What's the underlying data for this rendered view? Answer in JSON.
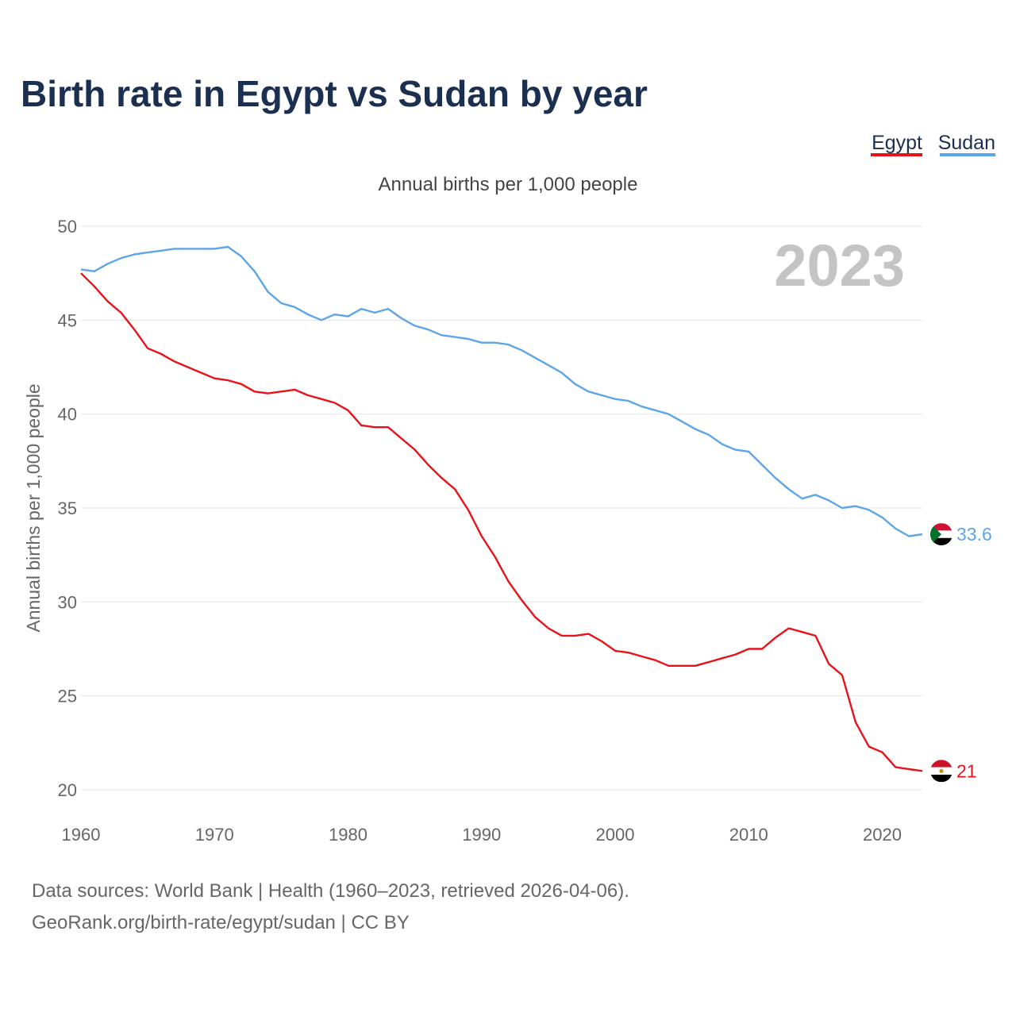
{
  "title": "Birth rate in Egypt vs Sudan by year",
  "subtitle": "Annual births per 1,000 people",
  "year_display": "2023",
  "source_line1": "Data sources: World Bank | Health (1960–2023, retrieved 2026-04-06).",
  "source_line2": "GeoRank.org/birth-rate/egypt/sudan | CC BY",
  "colors": {
    "egypt": "#e8131a",
    "sudan": "#5ea5e6",
    "title": "#1b3050"
  },
  "legend": [
    {
      "name": "Egypt",
      "color": "#e8131a"
    },
    {
      "name": "Sudan",
      "color": "#5ea5e6"
    }
  ],
  "chart_data": {
    "type": "line",
    "title": "Birth rate in Egypt vs Sudan by year",
    "ylabel": "Annual births per 1,000 people",
    "xlabel": "",
    "xlim": [
      1960,
      2023
    ],
    "ylim": [
      20,
      50
    ],
    "x_ticks": [
      "1960",
      "1970",
      "1980",
      "1990",
      "2000",
      "2010",
      "2020"
    ],
    "y_ticks": [
      "20",
      "25",
      "30",
      "35",
      "40",
      "45",
      "50"
    ],
    "x": [
      1960,
      1961,
      1962,
      1963,
      1964,
      1965,
      1966,
      1967,
      1968,
      1969,
      1970,
      1971,
      1972,
      1973,
      1974,
      1975,
      1976,
      1977,
      1978,
      1979,
      1980,
      1981,
      1982,
      1983,
      1984,
      1985,
      1986,
      1987,
      1988,
      1989,
      1990,
      1991,
      1992,
      1993,
      1994,
      1995,
      1996,
      1997,
      1998,
      1999,
      2000,
      2001,
      2002,
      2003,
      2004,
      2005,
      2006,
      2007,
      2008,
      2009,
      2010,
      2011,
      2012,
      2013,
      2014,
      2015,
      2016,
      2017,
      2018,
      2019,
      2020,
      2021,
      2022,
      2023
    ],
    "series": [
      {
        "name": "Egypt",
        "color": "#e8131a",
        "end_label": "21",
        "values": [
          47.5,
          46.8,
          46.0,
          45.4,
          44.5,
          43.5,
          43.2,
          42.8,
          42.5,
          42.2,
          41.9,
          41.8,
          41.6,
          41.2,
          41.1,
          41.2,
          41.3,
          41.0,
          40.8,
          40.6,
          40.2,
          39.4,
          39.3,
          39.3,
          38.7,
          38.1,
          37.3,
          36.6,
          36.0,
          34.9,
          33.5,
          32.4,
          31.1,
          30.1,
          29.2,
          28.6,
          28.2,
          28.2,
          28.3,
          27.9,
          27.4,
          27.3,
          27.1,
          26.9,
          26.6,
          26.6,
          26.6,
          26.8,
          27.0,
          27.2,
          27.5,
          27.5,
          28.1,
          28.6,
          28.4,
          28.2,
          26.7,
          26.1,
          23.6,
          22.3,
          22.0,
          21.2,
          21.1,
          21.0
        ]
      },
      {
        "name": "Sudan",
        "color": "#5ea5e6",
        "end_label": "33.6",
        "values": [
          47.7,
          47.6,
          48.0,
          48.3,
          48.5,
          48.6,
          48.7,
          48.8,
          48.8,
          48.8,
          48.8,
          48.9,
          48.4,
          47.6,
          46.5,
          45.9,
          45.7,
          45.3,
          45.0,
          45.3,
          45.2,
          45.6,
          45.4,
          45.6,
          45.1,
          44.7,
          44.5,
          44.2,
          44.1,
          44.0,
          43.8,
          43.8,
          43.7,
          43.4,
          43.0,
          42.6,
          42.2,
          41.6,
          41.2,
          41.0,
          40.8,
          40.7,
          40.4,
          40.2,
          40.0,
          39.6,
          39.2,
          38.9,
          38.4,
          38.1,
          38.0,
          37.3,
          36.6,
          36.0,
          35.5,
          35.7,
          35.4,
          35.0,
          35.1,
          34.9,
          34.5,
          33.9,
          33.5,
          33.6
        ]
      }
    ]
  }
}
